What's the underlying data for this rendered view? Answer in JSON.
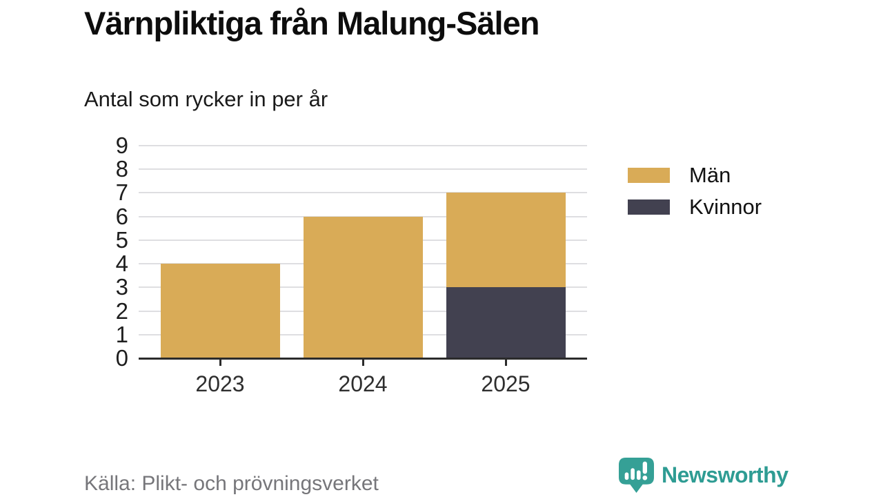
{
  "header": {
    "title": "Värnpliktiga från Malung-Sälen",
    "subtitle": "Antal som rycker in per år"
  },
  "chart_data": {
    "type": "bar",
    "stacked": true,
    "title": "Värnpliktiga från Malung-Sälen",
    "subtitle": "Antal som rycker in per år",
    "categories": [
      "2023",
      "2024",
      "2025"
    ],
    "series": [
      {
        "name": "Män",
        "color": "#D9AB57",
        "values": [
          4,
          6,
          4
        ]
      },
      {
        "name": "Kvinnor",
        "color": "#424150",
        "values": [
          0,
          0,
          3
        ]
      }
    ],
    "stack_totals": [
      4,
      6,
      7
    ],
    "xlabel": "",
    "ylabel": "",
    "ylim": [
      0,
      9
    ],
    "yticks": [
      0,
      1,
      2,
      3,
      4,
      5,
      6,
      7,
      8,
      9
    ],
    "grid": true,
    "legend_position": "right",
    "colors": {
      "grid": "#dedee1",
      "axis": "#2b2b2b"
    }
  },
  "legend": {
    "items": [
      {
        "label": "Män",
        "color": "#D9AB57"
      },
      {
        "label": "Kvinnor",
        "color": "#424150"
      }
    ]
  },
  "footer": {
    "source": "Källa: Plikt- och prövningsverket",
    "brand": "Newsworthy",
    "brand_color": "#2E9C93"
  }
}
